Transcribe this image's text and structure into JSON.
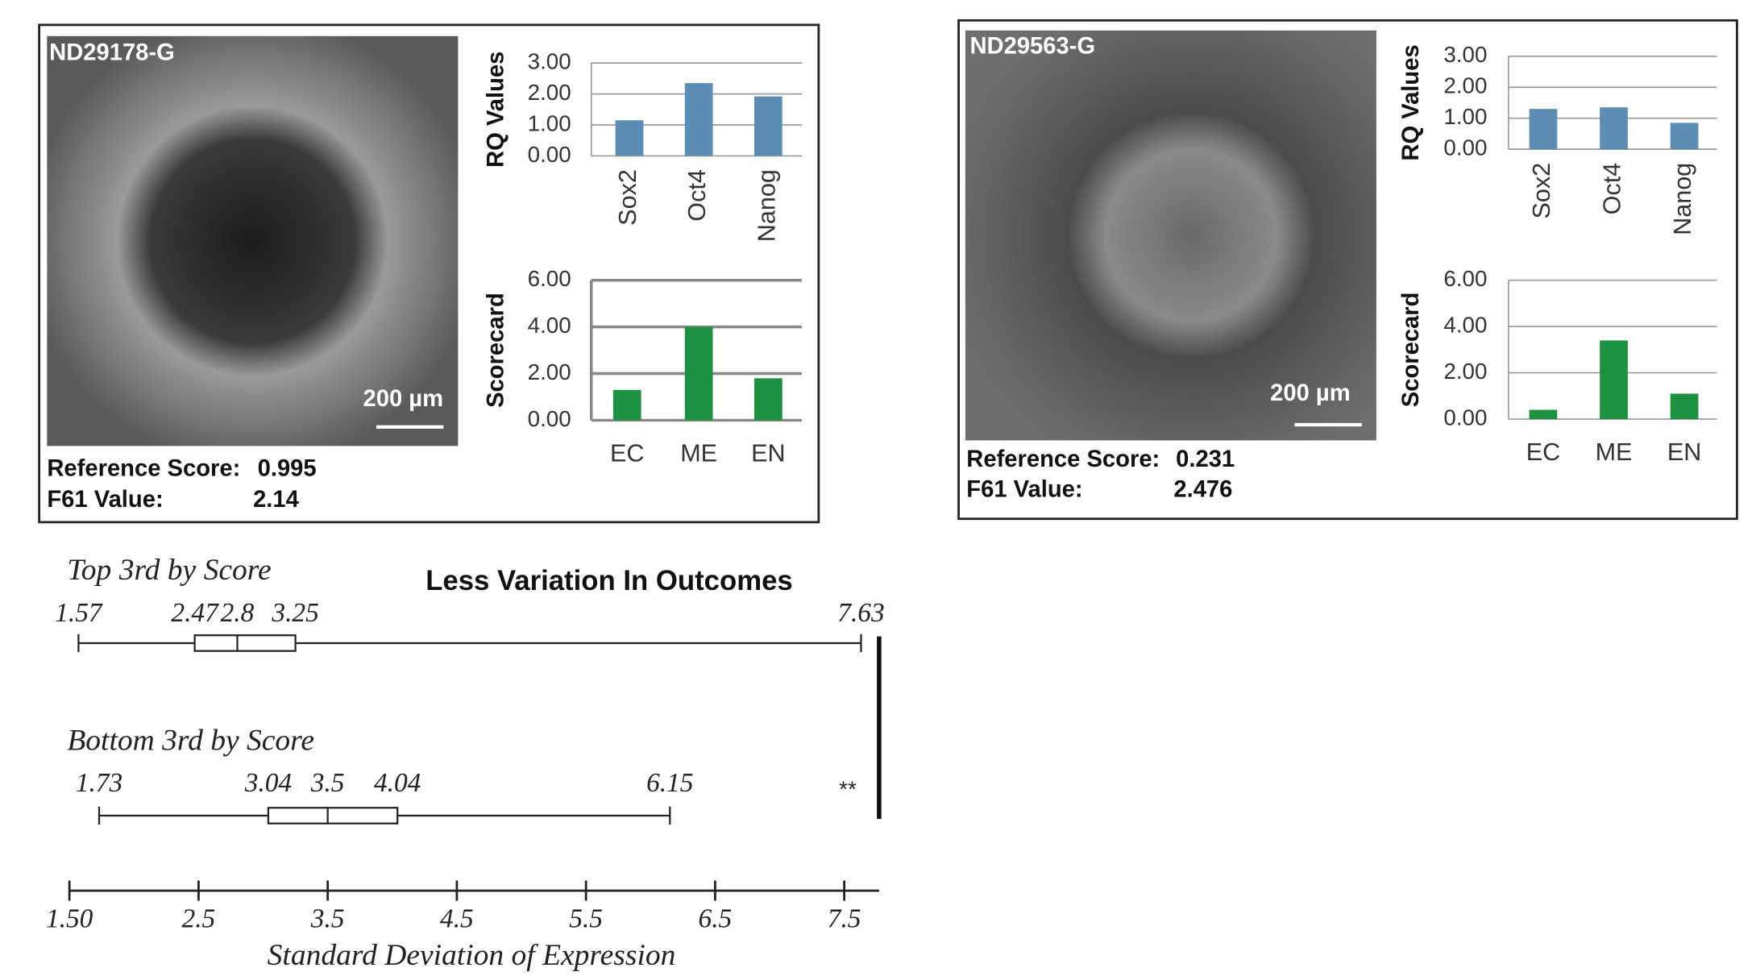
{
  "panels": [
    {
      "sample": "ND29178-G",
      "scale_bar": "200 µm",
      "reference_score_label": "Reference Score:",
      "reference_score": 0.995,
      "f61_label": "F61 Value:",
      "f61_value": 2.14
    },
    {
      "sample": "ND29563-G",
      "scale_bar": "200 µm",
      "reference_score_label": "Reference Score:",
      "reference_score": 0.231,
      "f61_label": "F61 Value:",
      "f61_value": 2.476
    }
  ],
  "chart_data": [
    {
      "type": "bar",
      "ylabel": "RQ Values",
      "categories": [
        "Sox2",
        "Oct4",
        "Nanog"
      ],
      "values": [
        1.15,
        2.35,
        1.92
      ],
      "color": "#5b8db5",
      "ylim": [
        0,
        3
      ],
      "yticks": [
        {
          "value": 0,
          "label": "0.00"
        },
        {
          "value": 1,
          "label": "1.00"
        },
        {
          "value": 2,
          "label": "2.00"
        },
        {
          "value": 3,
          "label": "3.00"
        }
      ],
      "grid": true
    },
    {
      "type": "bar",
      "ylabel": "Scorecard",
      "categories": [
        "EC",
        "ME",
        "EN"
      ],
      "values": [
        1.3,
        4.0,
        1.8
      ],
      "color": "#1e9140",
      "ylim": [
        0,
        6
      ],
      "yticks": [
        {
          "value": 0,
          "label": "0.00"
        },
        {
          "value": 2,
          "label": "2.00"
        },
        {
          "value": 4,
          "label": "4.00"
        },
        {
          "value": 6,
          "label": "6.00"
        }
      ],
      "grid": true
    },
    {
      "type": "bar",
      "ylabel": "RQ Values",
      "categories": [
        "Sox2",
        "Oct4",
        "Nanog"
      ],
      "values": [
        1.3,
        1.35,
        0.85
      ],
      "color": "#5b8db5",
      "ylim": [
        0,
        3
      ],
      "yticks": [
        {
          "value": 0,
          "label": "0.00"
        },
        {
          "value": 1,
          "label": "1.00"
        },
        {
          "value": 2,
          "label": "2.00"
        },
        {
          "value": 3,
          "label": "3.00"
        }
      ],
      "grid": true
    },
    {
      "type": "bar",
      "ylabel": "Scorecard",
      "categories": [
        "EC",
        "ME",
        "EN"
      ],
      "values": [
        0.4,
        3.4,
        1.1
      ],
      "color": "#1e9140",
      "ylim": [
        0,
        6
      ],
      "yticks": [
        {
          "value": 0,
          "label": "0.00"
        },
        {
          "value": 2,
          "label": "2.00"
        },
        {
          "value": 4,
          "label": "4.00"
        },
        {
          "value": 6,
          "label": "6.00"
        }
      ],
      "grid": true
    },
    {
      "type": "boxplot",
      "title": "Less Variation In Outcomes",
      "xlabel": "Standard Deviation of Expression",
      "series": [
        {
          "name": "Top 3rd by Score",
          "min": 1.57,
          "q1": 2.47,
          "median": 2.8,
          "q3": 3.25,
          "max": 7.63
        },
        {
          "name": "Bottom 3rd by Score",
          "min": 1.73,
          "q1": 3.04,
          "median": 3.5,
          "q3": 4.04,
          "max": 6.15
        }
      ],
      "annotation": "**",
      "xlim": [
        1.5,
        7.77
      ],
      "xticks": [
        {
          "value": 1.5,
          "label": "1.50"
        },
        2.5,
        3.5,
        4.5,
        5.5,
        6.5,
        7.5
      ]
    }
  ]
}
